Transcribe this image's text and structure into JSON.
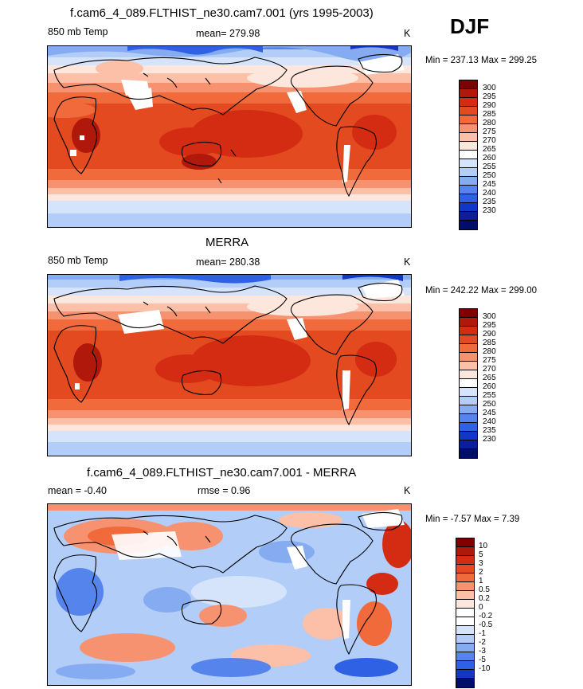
{
  "season": "DJF",
  "panels": [
    {
      "title": "f.cam6_4_089.FLTHIST_ne30.cam7.001 (yrs 1995-2003)",
      "left_label": "850 mb Temp",
      "center_label": "mean= 279.98",
      "units": "K",
      "minmax": "Min = 237.13 Max = 299.25",
      "colorbar_labels": [
        "300",
        "295",
        "290",
        "285",
        "280",
        "275",
        "270",
        "265",
        "260",
        "255",
        "250",
        "245",
        "240",
        "235",
        "230"
      ]
    },
    {
      "title": "MERRA",
      "left_label": "850 mb Temp",
      "center_label": "mean= 280.38",
      "units": "K",
      "minmax": "Min = 242.22 Max = 299.00",
      "colorbar_labels": [
        "300",
        "295",
        "290",
        "285",
        "280",
        "275",
        "270",
        "265",
        "260",
        "255",
        "250",
        "245",
        "240",
        "235",
        "230"
      ]
    },
    {
      "title": "f.cam6_4_089.FLTHIST_ne30.cam7.001 - MERRA",
      "left_label": "mean =  -0.40",
      "center_label": "rmse =   0.96",
      "units": "K",
      "minmax": "Min =  -7.57 Max =   7.39",
      "colorbar_labels": [
        "10",
        "5",
        "3",
        "2",
        "1",
        "0.5",
        "0.2",
        "0",
        "-0.2",
        "-0.5",
        "-1",
        "-2",
        "-3",
        "-5",
        "-10"
      ]
    }
  ],
  "colors": {
    "abs_scale": [
      "#7f0000",
      "#b0180b",
      "#d32c12",
      "#e34a1f",
      "#f06a3c",
      "#f79270",
      "#fcc0a8",
      "#fde6dc",
      "#ffffff",
      "#d6e4fb",
      "#b2cdf7",
      "#85abf0",
      "#5585ec",
      "#2f61e5",
      "#1237c8",
      "#0c1f9b",
      "#010d6b"
    ],
    "diff_scale": [
      "#7f0000",
      "#b0180b",
      "#d32c12",
      "#e34a1f",
      "#f06a3c",
      "#f79270",
      "#fcc0a8",
      "#fde6dc",
      "#ffffff",
      "#ffffff",
      "#d6e4fb",
      "#b2cdf7",
      "#85abf0",
      "#5585ec",
      "#2f61e5",
      "#1237c8",
      "#010d6b"
    ]
  }
}
